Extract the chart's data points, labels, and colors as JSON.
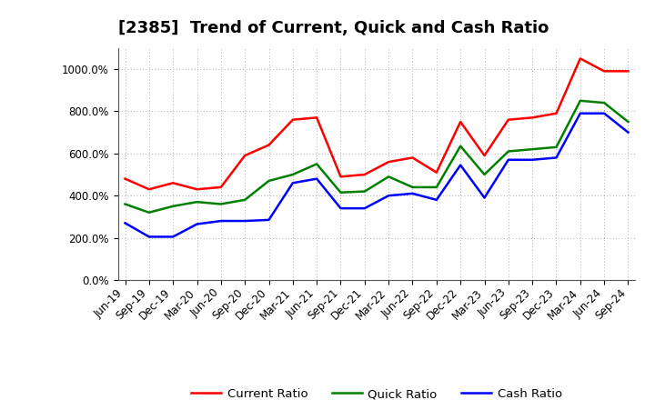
{
  "title": "[2385]  Trend of Current, Quick and Cash Ratio",
  "x_labels": [
    "Jun-19",
    "Sep-19",
    "Dec-19",
    "Mar-20",
    "Jun-20",
    "Sep-20",
    "Dec-20",
    "Mar-21",
    "Jun-21",
    "Sep-21",
    "Dec-21",
    "Mar-22",
    "Jun-22",
    "Sep-22",
    "Dec-22",
    "Mar-23",
    "Jun-23",
    "Sep-23",
    "Dec-23",
    "Mar-24",
    "Jun-24",
    "Sep-24"
  ],
  "current_ratio": [
    480,
    430,
    460,
    430,
    440,
    590,
    640,
    760,
    770,
    490,
    500,
    560,
    580,
    510,
    750,
    590,
    760,
    770,
    790,
    1050,
    990,
    990
  ],
  "quick_ratio": [
    360,
    320,
    350,
    370,
    360,
    380,
    470,
    500,
    550,
    415,
    420,
    490,
    440,
    440,
    635,
    500,
    610,
    620,
    630,
    850,
    840,
    750
  ],
  "cash_ratio": [
    270,
    205,
    205,
    265,
    280,
    280,
    285,
    460,
    480,
    340,
    340,
    400,
    410,
    380,
    545,
    390,
    570,
    570,
    580,
    790,
    790,
    700
  ],
  "current_color": "#FF0000",
  "quick_color": "#008000",
  "cash_color": "#0000FF",
  "background_color": "#FFFFFF",
  "plot_bg_color": "#FFFFFF",
  "grid_color": "#888888",
  "ylim": [
    0,
    1100
  ],
  "yticks": [
    0,
    200,
    400,
    600,
    800,
    1000
  ],
  "legend_labels": [
    "Current Ratio",
    "Quick Ratio",
    "Cash Ratio"
  ],
  "title_fontsize": 13,
  "tick_fontsize": 8.5,
  "legend_fontsize": 9.5
}
